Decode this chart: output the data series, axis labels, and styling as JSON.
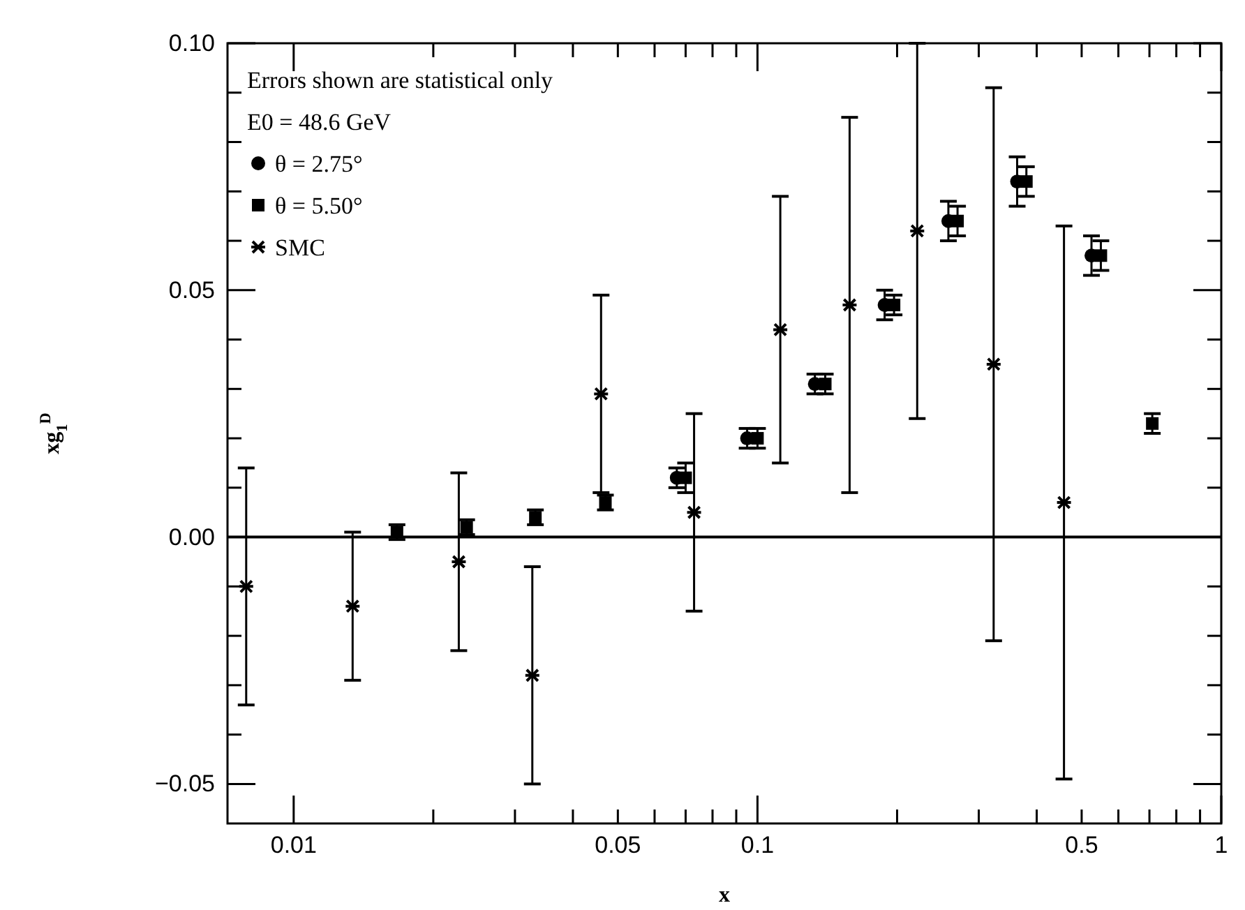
{
  "chart_data": {
    "type": "scatter",
    "xlabel": "x",
    "ylabel": "xg$_{1}$$^{D}$",
    "log": "x",
    "xlim": [
      0.0072,
      1
    ],
    "ylim": [
      -0.058,
      0.1
    ],
    "xticks": [
      0.01,
      {
        "value": 0.02,
        "label": null
      },
      {
        "value": 0.03,
        "label": null
      },
      {
        "value": 0.04,
        "label": null
      },
      0.05,
      {
        "value": 0.06,
        "label": null
      },
      {
        "value": 0.07,
        "label": null
      },
      {
        "value": 0.08,
        "label": null
      },
      {
        "value": 0.09,
        "label": null
      },
      0.1,
      {
        "value": 0.2,
        "label": null
      },
      {
        "value": 0.3,
        "label": null
      },
      {
        "value": 0.4,
        "label": null
      },
      0.5,
      {
        "value": 0.6,
        "label": null
      },
      {
        "value": 0.7,
        "label": null
      },
      {
        "value": 0.8,
        "label": null
      },
      {
        "value": 0.9,
        "label": null
      },
      1
    ],
    "yticks": [
      {
        "value": -0.05,
        "label": "−0.05"
      },
      {
        "value": -0.04,
        "label": null
      },
      {
        "value": -0.03,
        "label": null
      },
      {
        "value": -0.02,
        "label": null
      },
      {
        "value": -0.01,
        "label": null
      },
      {
        "value": 0,
        "label": "0.00"
      },
      {
        "value": 0.01,
        "label": null
      },
      {
        "value": 0.02,
        "label": null
      },
      {
        "value": 0.03,
        "label": null
      },
      {
        "value": 0.04,
        "label": null
      },
      {
        "value": 0.05,
        "label": "0.05"
      },
      {
        "value": 0.06,
        "label": null
      },
      {
        "value": 0.07,
        "label": null
      },
      {
        "value": 0.08,
        "label": null
      },
      {
        "value": 0.09,
        "label": null
      },
      {
        "value": 0.1,
        "label": "0.10"
      }
    ],
    "annotations": [
      "Errors shown are statistical only",
      "E0 = 48.6 GeV"
    ],
    "legend": "top left",
    "grid": false,
    "ref_lines": [
      {
        "axis": "y",
        "value": 0,
        "color": "#000000"
      }
    ],
    "series": [
      {
        "name": "θ = 2.75°",
        "color": "#000000",
        "marker": "circle",
        "x": [
          0.067,
          0.095,
          0.133,
          0.188,
          0.258,
          0.363,
          0.525
        ],
        "values": [
          0.012,
          0.02,
          0.031,
          0.047,
          0.064,
          0.072,
          0.057
        ],
        "errors": [
          0.002,
          0.002,
          0.002,
          0.003,
          0.004,
          0.005,
          0.004
        ]
      },
      {
        "name": "θ = 5.50°",
        "color": "#000000",
        "marker": "square",
        "x": [
          0.0167,
          0.0236,
          0.0332,
          0.047,
          0.07,
          0.1,
          0.14,
          0.197,
          0.27,
          0.38,
          0.55,
          0.71
        ],
        "values": [
          0.001,
          0.002,
          0.004,
          0.007,
          0.012,
          0.02,
          0.031,
          0.047,
          0.064,
          0.072,
          0.057,
          0.023
        ],
        "errors": [
          0.0015,
          0.0015,
          0.0015,
          0.0015,
          0.003,
          0.002,
          0.002,
          0.002,
          0.003,
          0.003,
          0.003,
          0.002
        ]
      },
      {
        "name": "SMC",
        "color": "#000000",
        "marker": "cross",
        "x": [
          0.0079,
          0.0134,
          0.0227,
          0.0327,
          0.046,
          0.073,
          0.112,
          0.158,
          0.221,
          0.323,
          0.458
        ],
        "values": [
          -0.01,
          -0.014,
          -0.005,
          -0.028,
          0.029,
          0.005,
          0.042,
          0.047,
          0.062,
          0.035,
          0.007
        ],
        "errors": [
          0.024,
          0.015,
          0.018,
          0.022,
          0.02,
          0.02,
          0.027,
          0.038,
          0.038,
          0.056,
          0.056
        ]
      }
    ]
  }
}
